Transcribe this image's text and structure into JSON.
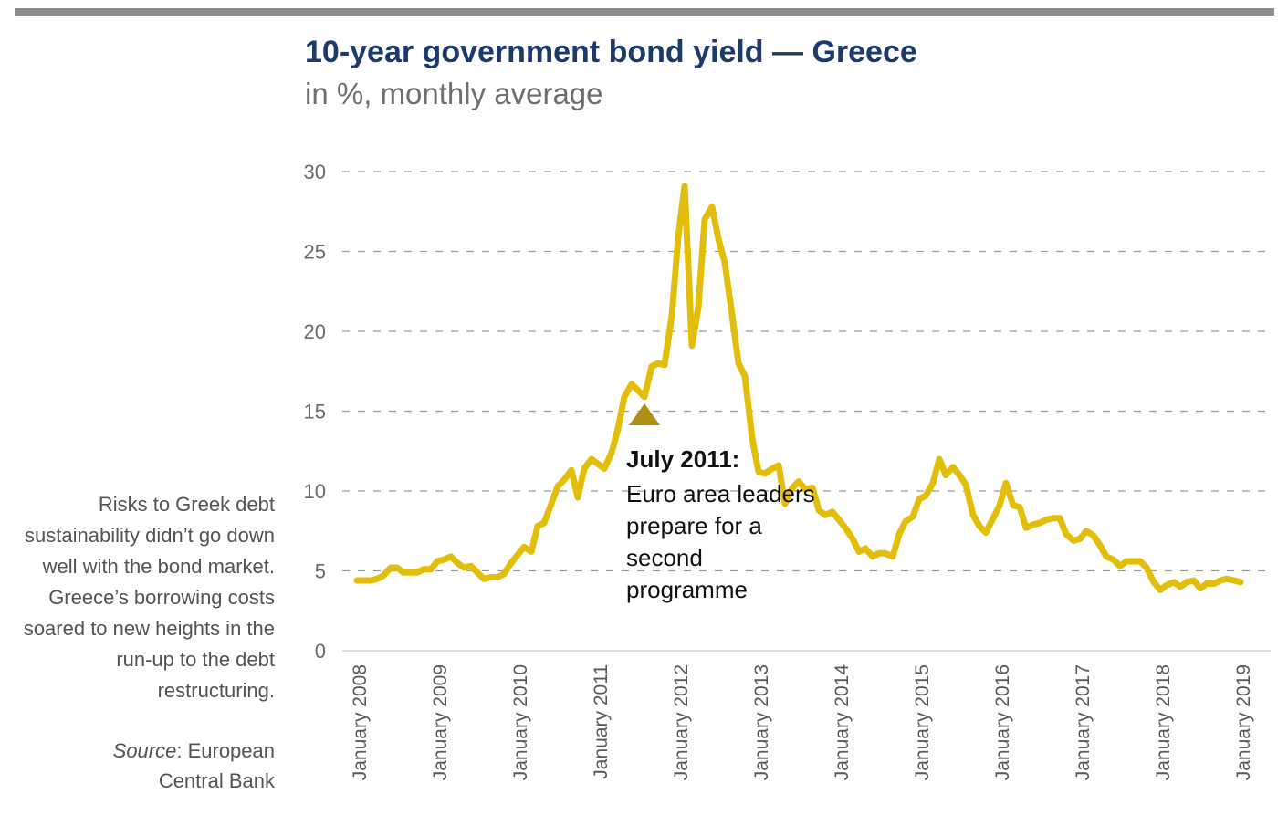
{
  "header": {
    "title": "10-year government bond yield — Greece",
    "subtitle": "in %, monthly average"
  },
  "side_note": "Risks to Greek debt sustainability didn’t go down well with the bond market. Greece’s borrowing costs soared to new heights in the run-up to the debt restructuring.",
  "source": {
    "label": "Source",
    "text": ": European Central Bank"
  },
  "annotation": {
    "heading": "July 2011:",
    "text": "Euro area leaders prepare for a second programme",
    "x": 2011.58,
    "y": 14.8
  },
  "colors": {
    "line": "#e2be0a",
    "marker": "#b08f19",
    "title": "#1c3a6b",
    "grid": "#9a9a9a",
    "topbar": "#8c8c8c"
  },
  "chart_data": {
    "type": "line",
    "ylim": [
      0,
      30
    ],
    "yticks": [
      0,
      5,
      10,
      15,
      20,
      25,
      30
    ],
    "xlim": [
      2008.0,
      2019.3
    ],
    "xticks": [
      {
        "x": 2008,
        "label": "January 2008"
      },
      {
        "x": 2009,
        "label": "January 2009"
      },
      {
        "x": 2010,
        "label": "January 2010"
      },
      {
        "x": 2011,
        "label": "January 2011"
      },
      {
        "x": 2012,
        "label": "January 2012"
      },
      {
        "x": 2013,
        "label": "January 2013"
      },
      {
        "x": 2014,
        "label": "January 2014"
      },
      {
        "x": 2015,
        "label": "January 2015"
      },
      {
        "x": 2016,
        "label": "January 2016"
      },
      {
        "x": 2017,
        "label": "January 2017"
      },
      {
        "x": 2018,
        "label": "January 2018"
      },
      {
        "x": 2019,
        "label": "January 2019"
      }
    ],
    "grid": "horizontal dashed",
    "series": [
      {
        "points": [
          [
            2008.0,
            4.4
          ],
          [
            2008.08,
            4.4
          ],
          [
            2008.17,
            4.4
          ],
          [
            2008.25,
            4.5
          ],
          [
            2008.33,
            4.7
          ],
          [
            2008.42,
            5.2
          ],
          [
            2008.5,
            5.2
          ],
          [
            2008.58,
            4.9
          ],
          [
            2008.67,
            4.9
          ],
          [
            2008.75,
            4.9
          ],
          [
            2008.83,
            5.1
          ],
          [
            2008.92,
            5.1
          ],
          [
            2009.0,
            5.6
          ],
          [
            2009.08,
            5.7
          ],
          [
            2009.17,
            5.9
          ],
          [
            2009.25,
            5.5
          ],
          [
            2009.33,
            5.2
          ],
          [
            2009.42,
            5.3
          ],
          [
            2009.5,
            4.9
          ],
          [
            2009.58,
            4.5
          ],
          [
            2009.67,
            4.6
          ],
          [
            2009.75,
            4.6
          ],
          [
            2009.83,
            4.8
          ],
          [
            2009.92,
            5.5
          ],
          [
            2010.0,
            6.0
          ],
          [
            2010.08,
            6.5
          ],
          [
            2010.17,
            6.2
          ],
          [
            2010.25,
            7.8
          ],
          [
            2010.33,
            8.0
          ],
          [
            2010.42,
            9.2
          ],
          [
            2010.5,
            10.3
          ],
          [
            2010.58,
            10.7
          ],
          [
            2010.67,
            11.3
          ],
          [
            2010.75,
            9.6
          ],
          [
            2010.83,
            11.4
          ],
          [
            2010.92,
            12.0
          ],
          [
            2011.0,
            11.7
          ],
          [
            2011.08,
            11.4
          ],
          [
            2011.17,
            12.4
          ],
          [
            2011.25,
            13.9
          ],
          [
            2011.33,
            15.9
          ],
          [
            2011.42,
            16.7
          ],
          [
            2011.5,
            16.3
          ],
          [
            2011.58,
            15.9
          ],
          [
            2011.67,
            17.8
          ],
          [
            2011.75,
            18.0
          ],
          [
            2011.83,
            17.9
          ],
          [
            2011.92,
            21.0
          ],
          [
            2012.0,
            25.9
          ],
          [
            2012.08,
            29.1
          ],
          [
            2012.17,
            19.1
          ],
          [
            2012.25,
            21.5
          ],
          [
            2012.33,
            27.0
          ],
          [
            2012.42,
            27.8
          ],
          [
            2012.5,
            25.8
          ],
          [
            2012.58,
            24.3
          ],
          [
            2012.67,
            21.0
          ],
          [
            2012.75,
            18.0
          ],
          [
            2012.83,
            17.2
          ],
          [
            2012.92,
            13.3
          ],
          [
            2013.0,
            11.2
          ],
          [
            2013.08,
            11.1
          ],
          [
            2013.17,
            11.4
          ],
          [
            2013.25,
            11.6
          ],
          [
            2013.33,
            9.2
          ],
          [
            2013.42,
            10.2
          ],
          [
            2013.5,
            10.6
          ],
          [
            2013.58,
            10.1
          ],
          [
            2013.67,
            10.2
          ],
          [
            2013.75,
            8.8
          ],
          [
            2013.83,
            8.5
          ],
          [
            2013.92,
            8.7
          ],
          [
            2014.0,
            8.2
          ],
          [
            2014.08,
            7.7
          ],
          [
            2014.17,
            7.0
          ],
          [
            2014.25,
            6.2
          ],
          [
            2014.33,
            6.4
          ],
          [
            2014.42,
            5.9
          ],
          [
            2014.5,
            6.1
          ],
          [
            2014.58,
            6.1
          ],
          [
            2014.67,
            5.9
          ],
          [
            2014.75,
            7.3
          ],
          [
            2014.83,
            8.1
          ],
          [
            2014.92,
            8.4
          ],
          [
            2015.0,
            9.5
          ],
          [
            2015.08,
            9.7
          ],
          [
            2015.17,
            10.5
          ],
          [
            2015.25,
            12.0
          ],
          [
            2015.33,
            11.0
          ],
          [
            2015.42,
            11.5
          ],
          [
            2015.5,
            11.0
          ],
          [
            2015.58,
            10.4
          ],
          [
            2015.67,
            8.5
          ],
          [
            2015.75,
            7.8
          ],
          [
            2015.83,
            7.4
          ],
          [
            2015.92,
            8.3
          ],
          [
            2016.0,
            9.1
          ],
          [
            2016.08,
            10.5
          ],
          [
            2016.17,
            9.1
          ],
          [
            2016.25,
            9.0
          ],
          [
            2016.33,
            7.7
          ],
          [
            2016.42,
            7.9
          ],
          [
            2016.5,
            8.0
          ],
          [
            2016.58,
            8.2
          ],
          [
            2016.67,
            8.3
          ],
          [
            2016.75,
            8.3
          ],
          [
            2016.83,
            7.3
          ],
          [
            2016.92,
            6.9
          ],
          [
            2017.0,
            7.0
          ],
          [
            2017.08,
            7.5
          ],
          [
            2017.17,
            7.2
          ],
          [
            2017.25,
            6.6
          ],
          [
            2017.33,
            5.9
          ],
          [
            2017.42,
            5.7
          ],
          [
            2017.5,
            5.3
          ],
          [
            2017.58,
            5.6
          ],
          [
            2017.67,
            5.6
          ],
          [
            2017.75,
            5.6
          ],
          [
            2017.83,
            5.2
          ],
          [
            2017.92,
            4.3
          ],
          [
            2018.0,
            3.8
          ],
          [
            2018.08,
            4.1
          ],
          [
            2018.17,
            4.3
          ],
          [
            2018.25,
            4.0
          ],
          [
            2018.33,
            4.3
          ],
          [
            2018.42,
            4.4
          ],
          [
            2018.5,
            3.9
          ],
          [
            2018.58,
            4.2
          ],
          [
            2018.67,
            4.2
          ],
          [
            2018.75,
            4.4
          ],
          [
            2018.83,
            4.5
          ],
          [
            2018.92,
            4.4
          ],
          [
            2019.0,
            4.3
          ]
        ]
      }
    ]
  }
}
